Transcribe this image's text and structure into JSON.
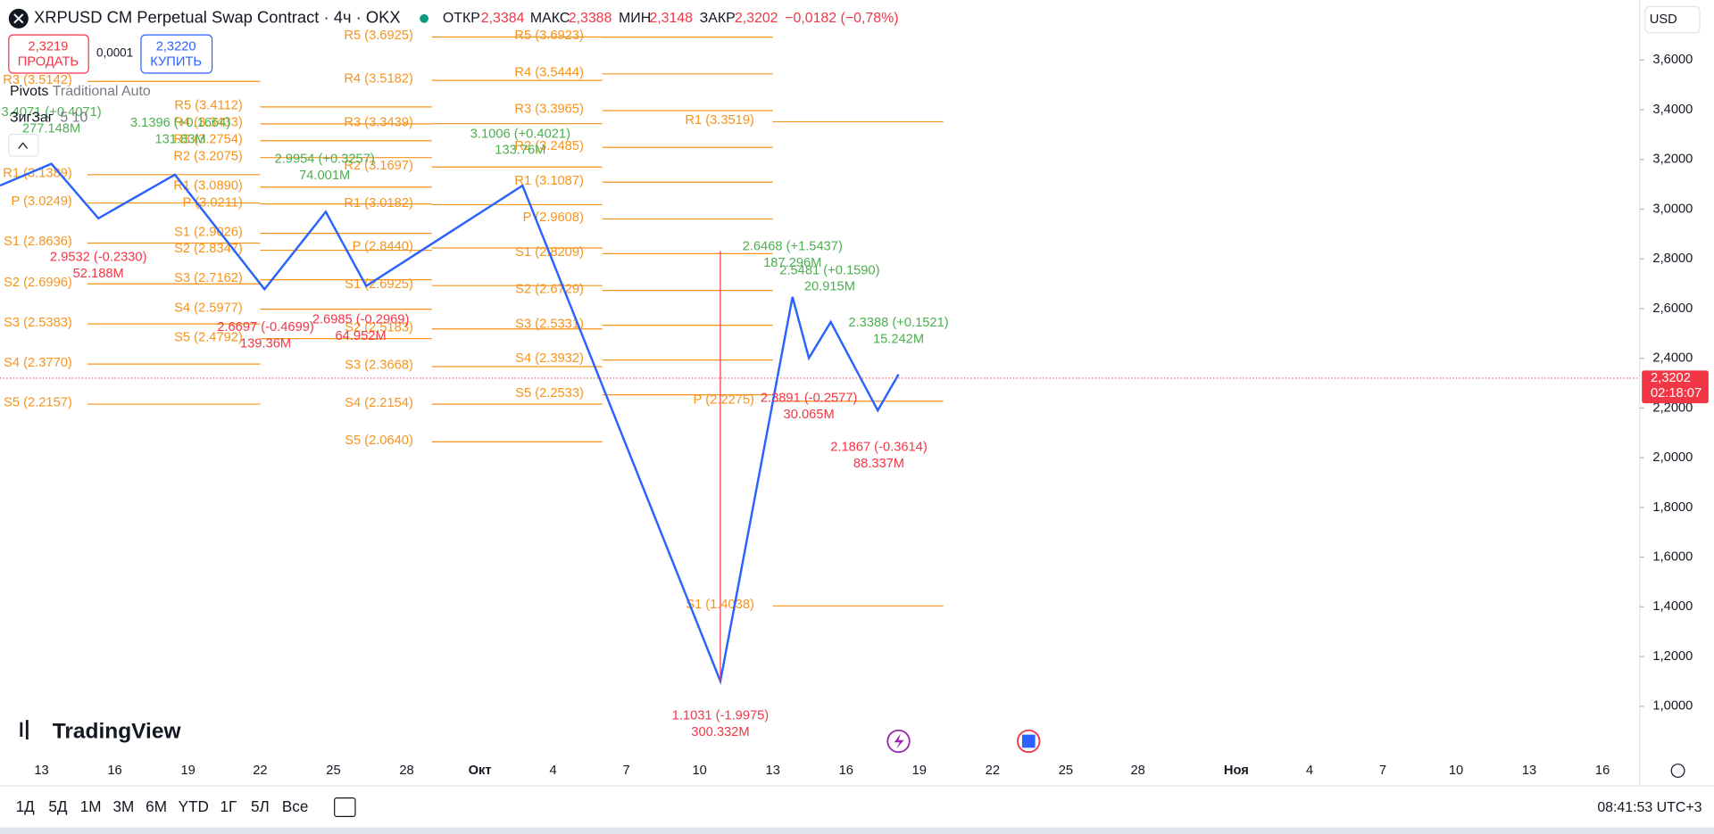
{
  "header": {
    "symbol": "XRPUSD CM Perpetual Swap Contract · 4ч · OKX",
    "open_label": "ОТКР",
    "open": "2,3384",
    "high_label": "МАКС",
    "high": "2,3388",
    "low_label": "МИН",
    "low": "2,3148",
    "close_label": "ЗАКР",
    "close": "2,3202",
    "change": "−0,0182 (−0,78%)"
  },
  "trade": {
    "sell_price": "2,3219",
    "sell_label": "ПРОДАТЬ",
    "spread": "0,0001",
    "buy_price": "2,3220",
    "buy_label": "КУПИТЬ"
  },
  "indicators": [
    {
      "name": "Pivots",
      "params": "Traditional Auto"
    },
    {
      "name": "ЗигЗаг",
      "params": "5 10"
    }
  ],
  "currency": "USD",
  "price_axis": {
    "ticks": [
      {
        "value": 3.6,
        "label": "3,6000"
      },
      {
        "value": 3.4,
        "label": "3,4000"
      },
      {
        "value": 3.2,
        "label": "3,2000"
      },
      {
        "value": 3.0,
        "label": "3,0000"
      },
      {
        "value": 2.8,
        "label": "2,8000"
      },
      {
        "value": 2.6,
        "label": "2,6000"
      },
      {
        "value": 2.4,
        "label": "2,4000"
      },
      {
        "value": 2.2,
        "label": "2,2000"
      },
      {
        "value": 2.0,
        "label": "2,0000"
      },
      {
        "value": 1.8,
        "label": "1,8000"
      },
      {
        "value": 1.6,
        "label": "1,6000"
      },
      {
        "value": 1.4,
        "label": "1,4000"
      },
      {
        "value": 1.2,
        "label": "1,2000"
      },
      {
        "value": 1.0,
        "label": "1,0000"
      }
    ],
    "last_price": {
      "value": 2.3202,
      "label": "2,3202",
      "countdown": "02:18:07"
    }
  },
  "date_axis": [
    "13",
    "16",
    "19",
    "22",
    "25",
    "28",
    "Окт",
    "4",
    "7",
    "10",
    "13",
    "16",
    "19",
    "22",
    "25",
    "28",
    "Ноя",
    "4",
    "7",
    "10",
    "13",
    "16"
  ],
  "pivots": [
    {
      "levels": [
        "R3 (3.5142)",
        "R1 (3.1389)",
        "P (3.0249)",
        "S1 (2.8636)",
        "S2 (2.6996)",
        "S3 (2.5383)",
        "S4 (2.3770)",
        "S5 (2.2157)"
      ]
    },
    {
      "levels": [
        "R5 (3.4112)",
        "R4 (3.3433)",
        "R3 (3.2754)",
        "R2 (3.2075)",
        "R1 (3.0890)",
        "P (3.0211)",
        "S1 (2.9026)",
        "S2 (2.8347)",
        "S3 (2.7162)",
        "S4 (2.5977)",
        "S5 (2.4792)"
      ]
    },
    {
      "levels": [
        "R5 (3.6925)",
        "R4 (3.5182)",
        "R3 (3.3439)",
        "R2 (3.1697)",
        "R1 (3.0182)",
        "P (2.8440)",
        "S1 (2.6925)",
        "S2 (2.5183)",
        "S3 (2.3668)",
        "S4 (2.2154)",
        "S5 (2.0640)"
      ]
    },
    {
      "levels": [
        "R5 (3.6923)",
        "R4 (3.5444)",
        "R3 (3.3965)",
        "R2 (3.2485)",
        "R1 (3.1087)",
        "P (2.9608)",
        "S1 (2.8209)",
        "S2 (2.6729)",
        "S3 (2.5331)",
        "S4 (2.3932)",
        "S5 (2.2533)"
      ]
    },
    {
      "levels": [
        "R1 (3.3519)",
        "P (2.2275)",
        "S1 (1.4038)"
      ]
    }
  ],
  "zigzag_labels": [
    {
      "price": "3.4071 (+0.4071)",
      "volume": "277.148M",
      "color": "#4caf50"
    },
    {
      "price": "3.1396 (+0.1664)",
      "volume": "131.83M",
      "color": "#4caf50"
    },
    {
      "price": "2.9954 (+0.3257)",
      "volume": "74.001M",
      "color": "#4caf50"
    },
    {
      "price": "3.1006 (+0.4021)",
      "volume": "133.76M",
      "color": "#4caf50"
    },
    {
      "price": "2.6468 (+1.5437)",
      "volume": "187.296M",
      "color": "#4caf50"
    },
    {
      "price": "2.5481 (+0.1590)",
      "volume": "20.915M",
      "color": "#4caf50"
    },
    {
      "price": "2.3388 (+0.1521)",
      "volume": "15.242M",
      "color": "#4caf50"
    },
    {
      "price": "2.9532 (-0.2330)",
      "volume": "52.188M",
      "color": "#f23645"
    },
    {
      "price": "2.6697 (-0.4699)",
      "volume": "139.36M",
      "color": "#f23645"
    },
    {
      "price": "2.6985 (-0.2969)",
      "volume": "64.952M",
      "color": "#f23645"
    },
    {
      "price": "2.3891 (-0.2577)",
      "volume": "30.065M",
      "color": "#f23645"
    },
    {
      "price": "2.1867 (-0.3614)",
      "volume": "88.337M",
      "color": "#f23645"
    },
    {
      "price": "1.1031 (-1.9975)",
      "volume": "300.332M",
      "color": "#f23645"
    }
  ],
  "brand": "TradingView",
  "ranges": [
    "1Д",
    "5Д",
    "1М",
    "3М",
    "6М",
    "YTD",
    "1Г",
    "5Л",
    "Все"
  ],
  "clock": "08:41:53 UTC+3"
}
